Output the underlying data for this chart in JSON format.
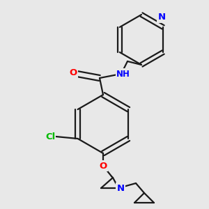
{
  "bg_color": "#e8e8e8",
  "bond_color": "#1a1a1a",
  "bond_width": 1.6,
  "atom_colors": {
    "O": "#ff0000",
    "N": "#0000ff",
    "Cl": "#00bb00",
    "C": "#1a1a1a",
    "H": "#1a1a1a"
  },
  "font_size": 8.5,
  "fig_size": [
    3.0,
    3.0
  ],
  "dpi": 100,
  "xlim": [
    0,
    300
  ],
  "ylim": [
    0,
    300
  ]
}
